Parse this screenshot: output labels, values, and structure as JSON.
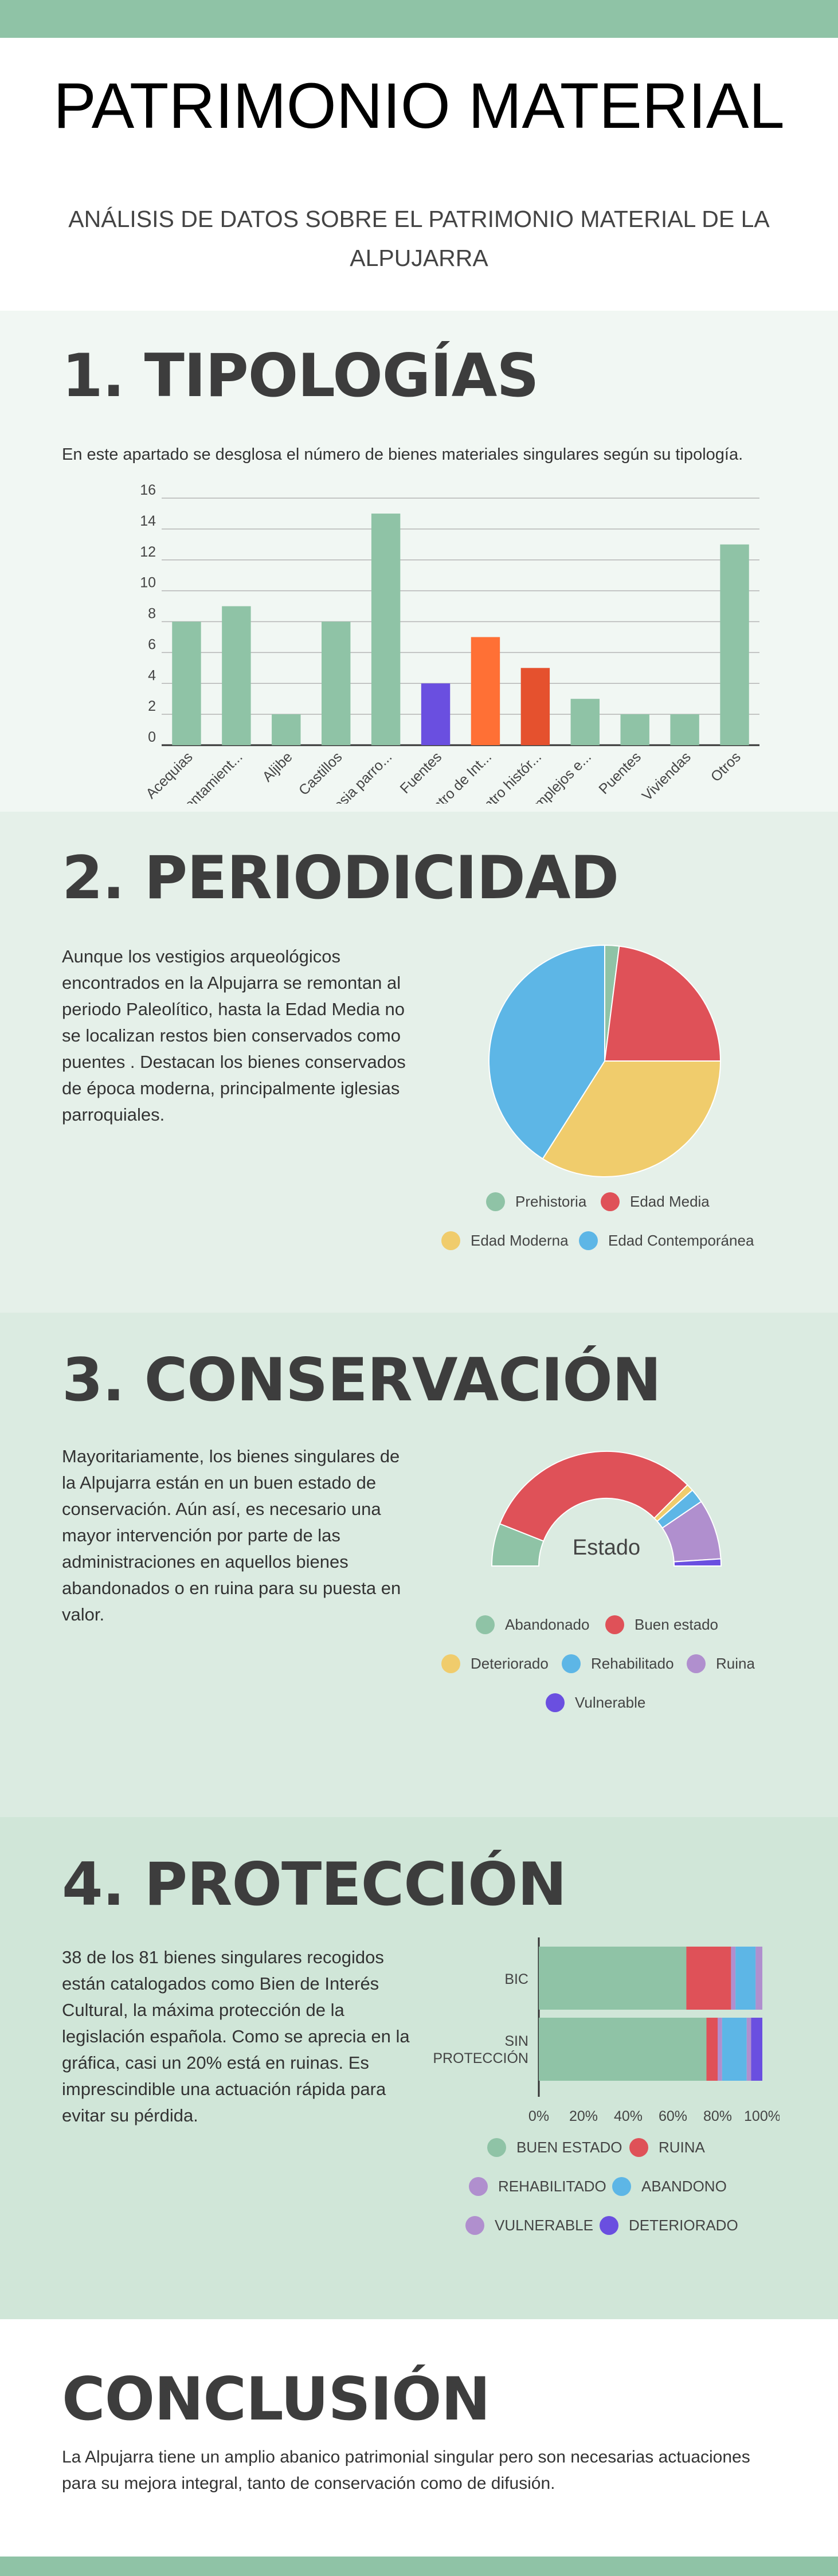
{
  "header": {
    "title": "PATRIMONIO MATERIAL",
    "subtitle": "ANÁLISIS DE DATOS SOBRE EL PATRIMONIO MATERIAL DE LA ALPUJARRA"
  },
  "sections": {
    "tipologias": {
      "heading": "1. TIPOLOGÍAS",
      "text": "En este apartado se desglosa el número de bienes materiales singulares según su tipología."
    },
    "periodicidad": {
      "heading": "2. PERIODICIDAD",
      "text": "Aunque los vestigios arqueológicos encontrados en la Alpujarra se remontan al periodo Paleolítico, hasta la Edad Media no se localizan restos bien conservados como puentes . Destacan los bienes conservados de época moderna, principalmente iglesias parroquiales."
    },
    "conservacion": {
      "heading": "3. CONSERVACIÓN",
      "text": "Mayoritariamente, los bienes singulares de la Alpujarra están en un buen estado de conservación. Aún así, es necesario una mayor intervención por parte de las administraciones en aquellos bienes abandonados o en ruina para su puesta en valor."
    },
    "proteccion": {
      "heading": "4. PROTECCIÓN",
      "text": "38 de los  81 bienes singulares recogidos están catalogados como Bien de Interés Cultural, la máxima protección de la legislación española. Como se aprecia en la gráfica, casi un 20% está en ruinas. Es imprescindible una actuación rápida para evitar su pérdida."
    },
    "conclusion": {
      "heading": "CONCLUSIÓN",
      "text": "La Alpujarra tiene un amplio abanico patrimonial singular pero son necesarias actuaciones para su mejora integral, tanto de conservación como de difusión."
    }
  },
  "colors": {
    "band": "#8fc3a6",
    "green": "#8fc3a6",
    "red": "#df5158",
    "yellow": "#f0cc6c",
    "blue": "#5db6e6",
    "purple": "#b08fce",
    "violet": "#6a4fe0",
    "orange": "#ff7035",
    "darkorange": "#e5512e"
  },
  "chart_data": [
    {
      "type": "bar",
      "categories": [
        "Acequias",
        "Asentamient...",
        "Aljibe",
        "Castillos",
        "Iglesia parro...",
        "Fuentes",
        "Centro de Int...",
        "Centro histór...",
        "Complejos e...",
        "Puentes",
        "Viviendas",
        "Otros"
      ],
      "values": [
        8,
        9,
        2,
        8,
        15,
        4,
        7,
        5,
        3,
        2,
        2,
        13
      ],
      "bar_colors": [
        "#8fc3a6",
        "#8fc3a6",
        "#8fc3a6",
        "#8fc3a6",
        "#8fc3a6",
        "#6a4fe0",
        "#ff7035",
        "#e5512e",
        "#8fc3a6",
        "#8fc3a6",
        "#8fc3a6",
        "#8fc3a6"
      ],
      "yticks": [
        "0",
        "2",
        "4",
        "6",
        "8",
        "10",
        "12",
        "14",
        "16"
      ],
      "ylim": [
        0,
        16
      ],
      "grid": true
    },
    {
      "type": "pie",
      "labels": [
        "Prehistoria",
        "Edad Media",
        "Edad Moderna",
        "Edad Contemporánea"
      ],
      "values": [
        2,
        23,
        34,
        41
      ],
      "colors": [
        "#8fc3a6",
        "#df5158",
        "#f0cc6c",
        "#5db6e6"
      ],
      "legend": "bottom"
    },
    {
      "type": "pie",
      "variant": "semi-donut",
      "center_label": "Estado",
      "labels": [
        "Abandonado",
        "Buen estado",
        "Deteriorado",
        "Rehabilitado",
        "Ruina",
        "Vulnerable"
      ],
      "values": [
        12,
        63,
        2,
        4,
        17,
        2
      ],
      "colors": [
        "#8fc3a6",
        "#df5158",
        "#f0cc6c",
        "#5db6e6",
        "#b08fce",
        "#6a4fe0"
      ],
      "legend": "bottom"
    },
    {
      "type": "bar",
      "orientation": "horizontal",
      "stacked": true,
      "categories": [
        "BIC",
        "SIN PROTECCIÓN"
      ],
      "xticks": [
        "0%",
        "20%",
        "40%",
        "60%",
        "80%",
        "100%"
      ],
      "series": [
        {
          "name": "BUEN ESTADO",
          "values": [
            66,
            75
          ],
          "color": "#8fc3a6"
        },
        {
          "name": "RUINA",
          "values": [
            20,
            5
          ],
          "color": "#df5158"
        },
        {
          "name": "REHABILITADO",
          "values": [
            2,
            2
          ],
          "color": "#b08fce"
        },
        {
          "name": "ABANDONO",
          "values": [
            9,
            11
          ],
          "color": "#5db6e6"
        },
        {
          "name": "VULNERABLE",
          "values": [
            3,
            2
          ],
          "color": "#b08fce"
        },
        {
          "name": "DETERIORADO",
          "values": [
            0,
            5
          ],
          "color": "#6a4fe0"
        }
      ],
      "legend": "bottom"
    }
  ]
}
